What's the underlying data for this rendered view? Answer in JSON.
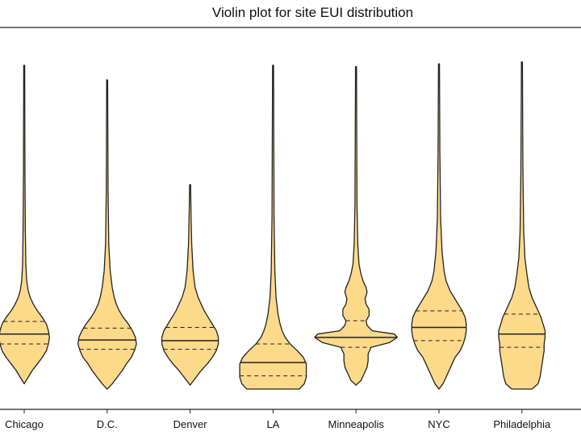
{
  "chart_data": {
    "type": "violin",
    "title": "Violin plot for site EUI distribution",
    "xlabel": "",
    "ylabel": "",
    "ylim": [
      0,
      550
    ],
    "grid": false,
    "fill_color": "#fdd98a",
    "edge_color": "#222222",
    "categories": [
      "Chicago",
      "D.C.",
      "Denver",
      "LA",
      "Minneapolis",
      "NYC",
      "Philadelphia"
    ],
    "series": [
      {
        "category": "Chicago",
        "min": 30,
        "max": 510,
        "q1": 90,
        "median": 105,
        "q3": 124,
        "profile": [
          [
            30,
            0
          ],
          [
            40,
            4
          ],
          [
            50,
            8
          ],
          [
            60,
            13
          ],
          [
            70,
            18
          ],
          [
            80,
            22
          ],
          [
            90,
            24
          ],
          [
            100,
            25
          ],
          [
            110,
            24
          ],
          [
            120,
            22
          ],
          [
            130,
            18
          ],
          [
            140,
            13
          ],
          [
            150,
            9
          ],
          [
            160,
            6
          ],
          [
            170,
            4
          ],
          [
            185,
            2.5
          ],
          [
            210,
            1.6
          ],
          [
            260,
            1.1
          ],
          [
            350,
            0.7
          ],
          [
            510,
            0.5
          ]
        ]
      },
      {
        "category": "D.C.",
        "min": 22,
        "max": 488,
        "q1": 82,
        "median": 96,
        "q3": 114,
        "profile": [
          [
            22,
            0
          ],
          [
            30,
            5
          ],
          [
            40,
            10
          ],
          [
            50,
            15
          ],
          [
            60,
            19
          ],
          [
            70,
            24
          ],
          [
            80,
            27
          ],
          [
            90,
            29
          ],
          [
            100,
            28
          ],
          [
            110,
            25
          ],
          [
            120,
            21
          ],
          [
            130,
            16
          ],
          [
            140,
            12
          ],
          [
            150,
            9
          ],
          [
            160,
            7
          ],
          [
            175,
            5
          ],
          [
            200,
            3
          ],
          [
            240,
            1.6
          ],
          [
            320,
            0.9
          ],
          [
            488,
            0.5
          ]
        ]
      },
      {
        "category": "Denver",
        "min": 28,
        "max": 330,
        "q1": 82,
        "median": 95,
        "q3": 115,
        "profile": [
          [
            28,
            0
          ],
          [
            40,
            6
          ],
          [
            50,
            11
          ],
          [
            60,
            17
          ],
          [
            70,
            22
          ],
          [
            80,
            26
          ],
          [
            90,
            28
          ],
          [
            100,
            28
          ],
          [
            110,
            26
          ],
          [
            120,
            22
          ],
          [
            130,
            18
          ],
          [
            140,
            14
          ],
          [
            150,
            11
          ],
          [
            160,
            8
          ],
          [
            175,
            5
          ],
          [
            200,
            3
          ],
          [
            240,
            1.6
          ],
          [
            280,
            1
          ],
          [
            330,
            0.5
          ]
        ]
      },
      {
        "category": "LA",
        "min": 22,
        "max": 510,
        "q1": 42,
        "median": 62,
        "q3": 90,
        "profile": [
          [
            22,
            26
          ],
          [
            30,
            31
          ],
          [
            40,
            33
          ],
          [
            50,
            33
          ],
          [
            60,
            33
          ],
          [
            70,
            30
          ],
          [
            80,
            24
          ],
          [
            90,
            17
          ],
          [
            100,
            12
          ],
          [
            110,
            9
          ],
          [
            120,
            7
          ],
          [
            135,
            5
          ],
          [
            160,
            3
          ],
          [
            200,
            1.8
          ],
          [
            280,
            1
          ],
          [
            510,
            0.5
          ]
        ]
      },
      {
        "category": "Minneapolis",
        "min": 28,
        "max": 508,
        "q1": 85,
        "median": 100,
        "q3": 125,
        "profile": [
          [
            28,
            0
          ],
          [
            35,
            5
          ],
          [
            45,
            8
          ],
          [
            55,
            11
          ],
          [
            65,
            12
          ],
          [
            75,
            12
          ],
          [
            85,
            15
          ],
          [
            92,
            33
          ],
          [
            100,
            41
          ],
          [
            105,
            38
          ],
          [
            110,
            16
          ],
          [
            118,
            11
          ],
          [
            125,
            10
          ],
          [
            133,
            13
          ],
          [
            142,
            13
          ],
          [
            150,
            10
          ],
          [
            158,
            9
          ],
          [
            168,
            11
          ],
          [
            175,
            10
          ],
          [
            185,
            7
          ],
          [
            195,
            5
          ],
          [
            210,
            3
          ],
          [
            240,
            1.8
          ],
          [
            300,
            1
          ],
          [
            508,
            0.5
          ]
        ]
      },
      {
        "category": "NYC",
        "min": 22,
        "max": 512,
        "q1": 95,
        "median": 115,
        "q3": 140,
        "profile": [
          [
            22,
            0
          ],
          [
            30,
            4
          ],
          [
            40,
            7
          ],
          [
            50,
            10
          ],
          [
            60,
            13
          ],
          [
            70,
            16
          ],
          [
            80,
            21
          ],
          [
            90,
            24
          ],
          [
            100,
            26
          ],
          [
            110,
            27
          ],
          [
            120,
            27
          ],
          [
            130,
            26
          ],
          [
            140,
            23
          ],
          [
            150,
            19
          ],
          [
            160,
            15
          ],
          [
            170,
            11
          ],
          [
            185,
            7
          ],
          [
            200,
            5
          ],
          [
            230,
            3
          ],
          [
            280,
            1.6
          ],
          [
            380,
            0.9
          ],
          [
            512,
            0.5
          ]
        ]
      },
      {
        "category": "Philadelphia",
        "min": 22,
        "max": 515,
        "q1": 85,
        "median": 105,
        "q3": 135,
        "profile": [
          [
            22,
            10
          ],
          [
            30,
            16
          ],
          [
            40,
            18
          ],
          [
            50,
            19
          ],
          [
            60,
            20
          ],
          [
            70,
            21
          ],
          [
            80,
            22
          ],
          [
            90,
            22
          ],
          [
            100,
            23
          ],
          [
            110,
            23
          ],
          [
            120,
            21
          ],
          [
            130,
            19
          ],
          [
            140,
            16
          ],
          [
            150,
            13
          ],
          [
            160,
            10
          ],
          [
            175,
            7
          ],
          [
            195,
            5
          ],
          [
            220,
            3
          ],
          [
            260,
            1.8
          ],
          [
            350,
            1
          ],
          [
            515,
            0.5
          ]
        ]
      }
    ]
  }
}
